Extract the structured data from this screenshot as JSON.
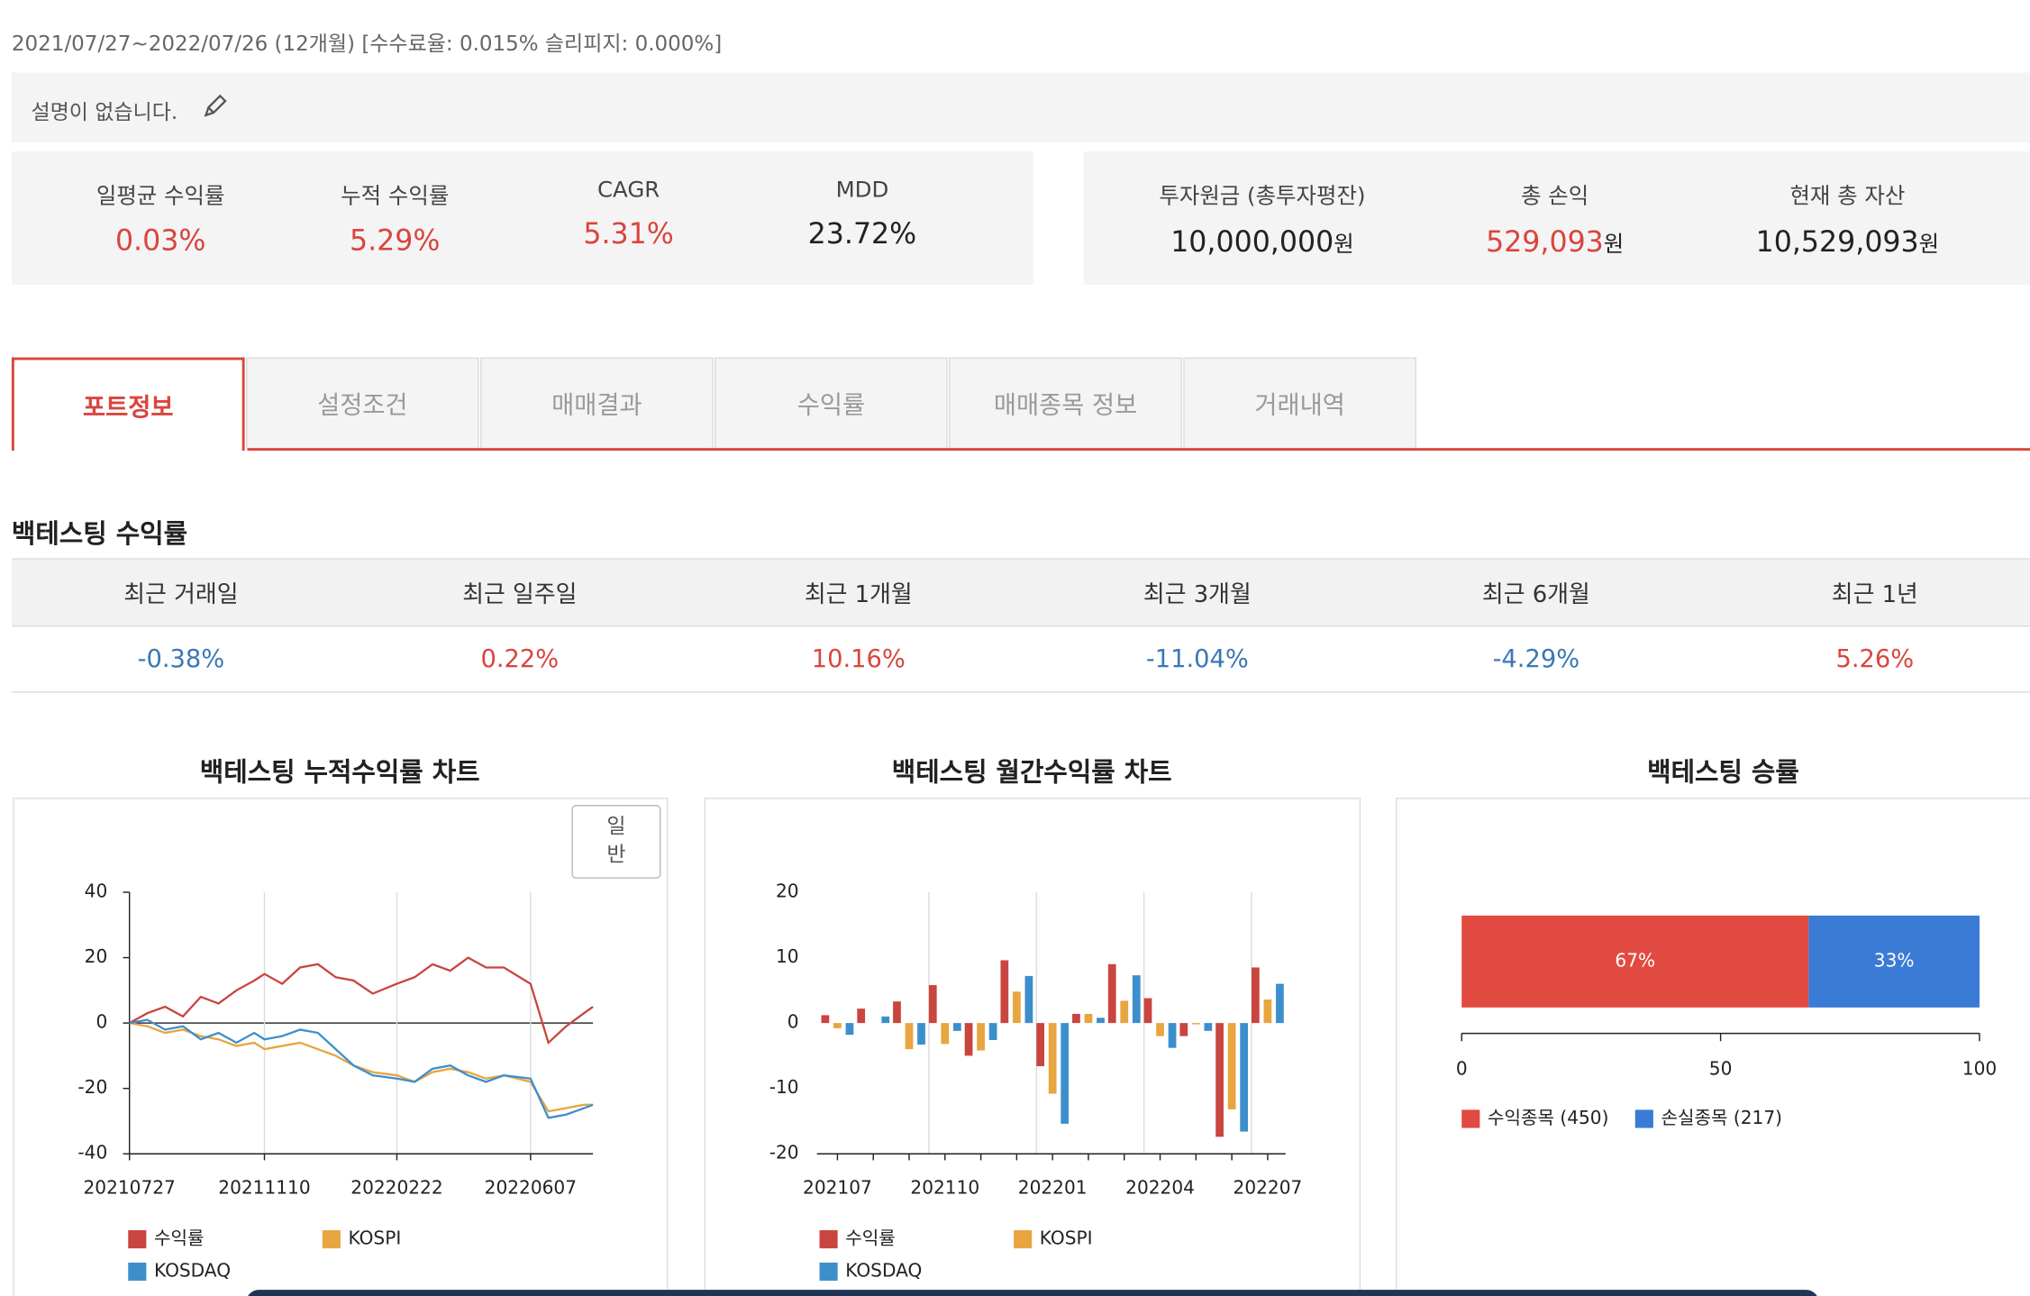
{
  "header": {
    "period": "2021/07/27~2022/07/26 (12개월) [수수료율: 0.015% 슬리피지: 0.000%]"
  },
  "description": "설명이 없습니다.",
  "metrics": [
    {
      "label": "일평균 수익률",
      "value": "0.03%",
      "color": "#d9453d"
    },
    {
      "label": "누적 수익률",
      "value": "5.29%",
      "color": "#d9453d"
    },
    {
      "label": "CAGR",
      "value": "5.31%",
      "color": "#d9453d"
    },
    {
      "label": "MDD",
      "value": "23.72%",
      "color": "#222222"
    }
  ],
  "assets": [
    {
      "label": "투자원금 (총투자평잔)",
      "value": "10,000,000",
      "unit": "원",
      "color": "#222222"
    },
    {
      "label": "총 손익",
      "value": "529,093",
      "unit": "원",
      "color": "#d9453d"
    },
    {
      "label": "현재 총 자산",
      "value": "10,529,093",
      "unit": "원",
      "color": "#222222"
    }
  ],
  "tabs": {
    "items": [
      "포트정보",
      "설정조건",
      "매매결과",
      "수익률",
      "매매종목 정보",
      "거래내역"
    ],
    "active": 0
  },
  "returns": {
    "title": "백테스팅 수익률",
    "headers": [
      "최근 거래일",
      "최근 일주일",
      "최근 1개월",
      "최근 3개월",
      "최근 6개월",
      "최근 1년"
    ],
    "values": [
      "-0.38%",
      "0.22%",
      "10.16%",
      "-11.04%",
      "-4.29%",
      "5.26%"
    ]
  },
  "chart_data": [
    {
      "type": "line",
      "title": "백테스팅 누적수익률 차트",
      "toggle_label": "일반",
      "x": [
        "20210727",
        "20210810",
        "20210824",
        "20210907",
        "20210921",
        "20211005",
        "20211019",
        "20211102",
        "20211110",
        "20211124",
        "20211208",
        "20211222",
        "20220105",
        "20220119",
        "20220203",
        "20220222",
        "20220308",
        "20220322",
        "20220405",
        "20220419",
        "20220503",
        "20220517",
        "20220607",
        "20220621",
        "20220705",
        "20220719",
        "20220726"
      ],
      "xlim": [
        "20210727",
        "20220726"
      ],
      "xticks": [
        "20210727",
        "20211110",
        "20220222",
        "20220607"
      ],
      "ylim": [
        -40,
        40
      ],
      "yticks": [
        -40,
        -20,
        0,
        20,
        40
      ],
      "grid": true,
      "series": [
        {
          "name": "수익률",
          "color": "#c9453f",
          "values": [
            0,
            3,
            5,
            2,
            8,
            6,
            10,
            13,
            15,
            12,
            17,
            18,
            14,
            13,
            9,
            12,
            14,
            18,
            16,
            20,
            17,
            17,
            12,
            -6,
            -1,
            3,
            5
          ]
        },
        {
          "name": "KOSPI",
          "color": "#e8a540",
          "values": [
            0,
            -1,
            -3,
            -2,
            -4,
            -5,
            -7,
            -6,
            -8,
            -7,
            -6,
            -8,
            -10,
            -13,
            -15,
            -16,
            -18,
            -15,
            -14,
            -15,
            -17,
            -16,
            -18,
            -27,
            -26,
            -25,
            -25
          ]
        },
        {
          "name": "KOSDAQ",
          "color": "#3d8fcc",
          "values": [
            0,
            1,
            -2,
            -1,
            -5,
            -3,
            -6,
            -3,
            -5,
            -4,
            -2,
            -3,
            -8,
            -13,
            -16,
            -17,
            -18,
            -14,
            -13,
            -16,
            -18,
            -16,
            -17,
            -29,
            -28,
            -26,
            -25
          ]
        }
      ]
    },
    {
      "type": "bar",
      "title": "백테스팅 월간수익률 차트",
      "categories": [
        "202107",
        null,
        null,
        "202110",
        null,
        null,
        "202201",
        null,
        null,
        "202204",
        null,
        null,
        "202207"
      ],
      "ylim": [
        -20,
        20
      ],
      "yticks": [
        -20,
        -10,
        0,
        10,
        20
      ],
      "grid": true,
      "series": [
        {
          "name": "수익률",
          "color": "#c9453f",
          "values": [
            1.2,
            2.2,
            3.3,
            5.8,
            -5,
            9.6,
            -6.6,
            1.4,
            9,
            3.8,
            -2,
            -17.4,
            8.5
          ]
        },
        {
          "name": "KOSPI",
          "color": "#e8a540",
          "values": [
            -0.8,
            0,
            -4,
            -3.2,
            -4.2,
            4.8,
            -10.8,
            1.4,
            3.4,
            -2,
            -0.2,
            -13.2,
            3.6
          ]
        },
        {
          "name": "KOSDAQ",
          "color": "#3d8fcc",
          "values": [
            -1.8,
            1,
            -3.3,
            -1.2,
            -2.6,
            7.2,
            -15.4,
            0.8,
            7.3,
            -3.8,
            -1.2,
            -16.6,
            6
          ]
        }
      ]
    },
    {
      "type": "bar",
      "horizontal": true,
      "stacked": true,
      "title": "백테스팅 승률",
      "xlim": [
        0,
        100
      ],
      "xticks": [
        0,
        50,
        100
      ],
      "series": [
        {
          "name": "수익종목 (450)",
          "color": "#e04a40",
          "values": [
            67
          ],
          "value_labels": [
            "67%"
          ]
        },
        {
          "name": "손실종목 (217)",
          "color": "#3a7bd5",
          "values": [
            33
          ],
          "value_labels": [
            "33%"
          ]
        }
      ]
    }
  ]
}
